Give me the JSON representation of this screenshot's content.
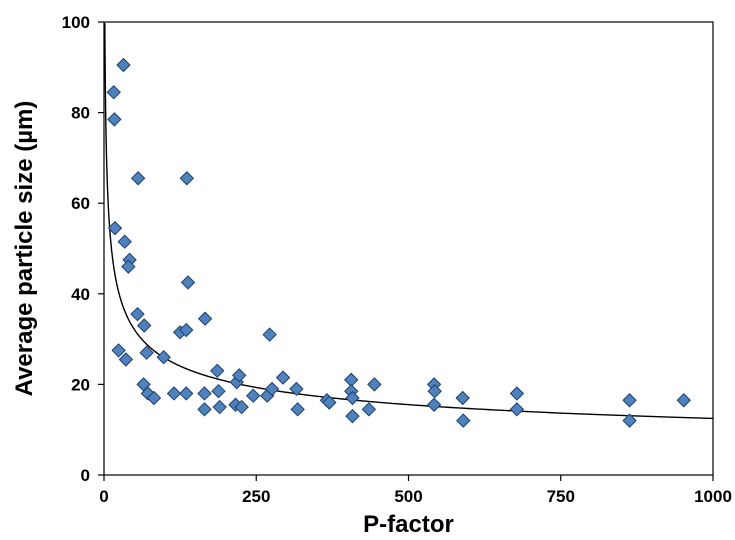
{
  "chart_data": {
    "type": "scatter",
    "title": "",
    "xlabel": "P-factor",
    "ylabel": "Average particle size (µm)",
    "xlim": [
      0,
      1000
    ],
    "ylim": [
      0,
      100
    ],
    "xticks": [
      0,
      250,
      500,
      750,
      1000
    ],
    "yticks": [
      0,
      20,
      40,
      60,
      80,
      100
    ],
    "xtick_labels": [
      "0",
      "250",
      "500",
      "750",
      "1000"
    ],
    "ytick_labels": [
      "0",
      "20",
      "40",
      "60",
      "80",
      "100"
    ],
    "grid": false,
    "legend": "none",
    "marker": "diamond",
    "marker_color": "#4f81bd",
    "marker_edge_color": "#1f3f6a",
    "points": [
      [
        16,
        84.5
      ],
      [
        17,
        78.5
      ],
      [
        32,
        90.5
      ],
      [
        56,
        65.5
      ],
      [
        18,
        54.5
      ],
      [
        34,
        51.5
      ],
      [
        42,
        47.5
      ],
      [
        40,
        46.0
      ],
      [
        24,
        27.5
      ],
      [
        36,
        25.5
      ],
      [
        55,
        35.5
      ],
      [
        66,
        33.0
      ],
      [
        70,
        27.0
      ],
      [
        65,
        20.0
      ],
      [
        72,
        18.0
      ],
      [
        82,
        17.0
      ],
      [
        98,
        26.0
      ],
      [
        115,
        18.0
      ],
      [
        125,
        31.5
      ],
      [
        135,
        32.0
      ],
      [
        135,
        18.0
      ],
      [
        136,
        65.5
      ],
      [
        138,
        42.5
      ],
      [
        166,
        34.5
      ],
      [
        165,
        18.0
      ],
      [
        165,
        14.5
      ],
      [
        186,
        23.0
      ],
      [
        188,
        18.5
      ],
      [
        190,
        15.0
      ],
      [
        216,
        15.5
      ],
      [
        218,
        20.5
      ],
      [
        222,
        22.0
      ],
      [
        226,
        15.0
      ],
      [
        245,
        17.5
      ],
      [
        268,
        17.5
      ],
      [
        272,
        31.0
      ],
      [
        276,
        19.0
      ],
      [
        294,
        21.5
      ],
      [
        316,
        19.0
      ],
      [
        318,
        14.5
      ],
      [
        366,
        16.5
      ],
      [
        370,
        16.0
      ],
      [
        406,
        21.0
      ],
      [
        406,
        18.5
      ],
      [
        408,
        17.0
      ],
      [
        408,
        13.0
      ],
      [
        435,
        14.5
      ],
      [
        444,
        20.0
      ],
      [
        542,
        20.0
      ],
      [
        543,
        18.5
      ],
      [
        542,
        15.5
      ],
      [
        589,
        17.0
      ],
      [
        590,
        12.0
      ],
      [
        678,
        18.0
      ],
      [
        678,
        14.5
      ],
      [
        863,
        16.5
      ],
      [
        863,
        12.0
      ],
      [
        952,
        16.5
      ]
    ],
    "trendline": {
      "type": "power",
      "coefficient": 110,
      "exponent": -0.315,
      "color": "#000000"
    }
  }
}
